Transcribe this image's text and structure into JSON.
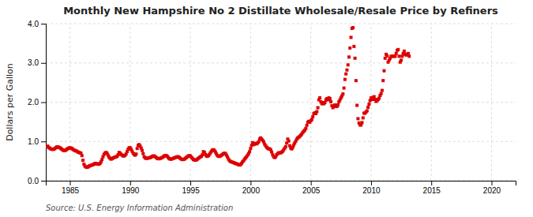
{
  "chart_data": {
    "type": "scatter",
    "title": "Monthly New Hampshire No 2 Distillate Wholesale/Resale Price by Refiners",
    "y_label": "Dollars per Gallon",
    "annotations": [
      "Source: U.S. Energy Information Administration"
    ],
    "color": "#dd0000",
    "marker": "square",
    "grid": true,
    "xlim": [
      1983,
      2022
    ],
    "ylim": [
      0.0,
      4.0
    ],
    "xticks": [
      1985,
      1990,
      1995,
      2000,
      2005,
      2010,
      2015,
      2020
    ],
    "yticks": [
      {
        "value": 0.0,
        "label": "0.0"
      },
      {
        "value": 1.0,
        "label": "1.0"
      },
      {
        "value": 2.0,
        "label": "2.0"
      },
      {
        "value": 3.0,
        "label": "3.0"
      },
      {
        "value": 4.0,
        "label": "4.0"
      }
    ],
    "x": [
      1983.0833333333,
      1983.1666666667,
      1983.25,
      1983.3333333333,
      1983.4166666667,
      1983.5,
      1983.5833333333,
      1983.6666666667,
      1983.75,
      1983.8333333333,
      1983.9166666667,
      1984,
      1984.0833333333,
      1984.1666666667,
      1984.25,
      1984.3333333333,
      1984.4166666667,
      1984.5,
      1984.5833333333,
      1984.6666666667,
      1984.75,
      1984.8333333333,
      1984.9166666667,
      1985,
      1985.0833333333,
      1985.1666666667,
      1985.25,
      1985.3333333333,
      1985.4166666667,
      1985.5,
      1985.5833333333,
      1985.6666666667,
      1985.75,
      1985.8333333333,
      1985.9166666667,
      1986,
      1986.0833333333,
      1986.1666666667,
      1986.25,
      1986.3333333333,
      1986.4166666667,
      1986.5,
      1986.5833333333,
      1986.6666666667,
      1986.75,
      1986.8333333333,
      1986.9166666667,
      1987,
      1987.0833333333,
      1987.1666666667,
      1987.25,
      1987.3333333333,
      1987.4166666667,
      1987.5,
      1987.5833333333,
      1987.6666666667,
      1987.75,
      1987.8333333333,
      1987.9166666667,
      1988,
      1988.0833333333,
      1988.1666666667,
      1988.25,
      1988.3333333333,
      1988.4166666667,
      1988.5,
      1988.5833333333,
      1988.6666666667,
      1988.75,
      1988.8333333333,
      1988.9166666667,
      1989,
      1989.0833333333,
      1989.1666666667,
      1989.25,
      1989.3333333333,
      1989.4166666667,
      1989.5,
      1989.5833333333,
      1989.6666666667,
      1989.75,
      1989.8333333333,
      1989.9166666667,
      1990,
      1990.0833333333,
      1990.1666666667,
      1990.25,
      1990.3333333333,
      1990.4166666667,
      1990.5,
      1990.5833333333,
      1990.6666666667,
      1990.75,
      1990.8333333333,
      1990.9166666667,
      1991,
      1991.0833333333,
      1991.1666666667,
      1991.25,
      1991.3333333333,
      1991.4166666667,
      1991.5,
      1991.5833333333,
      1991.6666666667,
      1991.75,
      1991.8333333333,
      1991.9166666667,
      1992,
      1992.0833333333,
      1992.1666666667,
      1992.25,
      1992.3333333333,
      1992.4166666667,
      1992.5,
      1992.5833333333,
      1992.6666666667,
      1992.75,
      1992.8333333333,
      1992.9166666667,
      1993,
      1993.0833333333,
      1993.1666666667,
      1993.25,
      1993.3333333333,
      1993.4166666667,
      1993.5,
      1993.5833333333,
      1993.6666666667,
      1993.75,
      1993.8333333333,
      1993.9166666667,
      1994,
      1994.0833333333,
      1994.1666666667,
      1994.25,
      1994.3333333333,
      1994.4166666667,
      1994.5,
      1994.5833333333,
      1994.6666666667,
      1994.75,
      1994.8333333333,
      1994.9166666667,
      1995,
      1995.0833333333,
      1995.1666666667,
      1995.25,
      1995.3333333333,
      1995.4166666667,
      1995.5,
      1995.5833333333,
      1995.6666666667,
      1995.75,
      1995.8333333333,
      1995.9166666667,
      1996,
      1996.0833333333,
      1996.1666666667,
      1996.25,
      1996.3333333333,
      1996.4166666667,
      1996.5,
      1996.5833333333,
      1996.6666666667,
      1996.75,
      1996.8333333333,
      1996.9166666667,
      1997,
      1997.0833333333,
      1997.1666666667,
      1997.25,
      1997.3333333333,
      1997.4166666667,
      1997.5,
      1997.5833333333,
      1997.6666666667,
      1997.75,
      1997.8333333333,
      1997.9166666667,
      1998,
      1998.0833333333,
      1998.1666666667,
      1998.25,
      1998.3333333333,
      1998.4166666667,
      1998.5,
      1998.5833333333,
      1998.6666666667,
      1998.75,
      1998.8333333333,
      1998.9166666667,
      1999,
      1999.0833333333,
      1999.1666666667,
      1999.25,
      1999.3333333333,
      1999.4166666667,
      1999.5,
      1999.5833333333,
      1999.6666666667,
      1999.75,
      1999.8333333333,
      1999.9166666667,
      2000,
      2000.0833333333,
      2000.1666666667,
      2000.25,
      2000.3333333333,
      2000.4166666667,
      2000.5,
      2000.5833333333,
      2000.6666666667,
      2000.75,
      2000.8333333333,
      2000.9166666667,
      2001,
      2001.0833333333,
      2001.1666666667,
      2001.25,
      2001.3333333333,
      2001.4166666667,
      2001.5,
      2001.5833333333,
      2001.6666666667,
      2001.75,
      2001.8333333333,
      2001.9166666667,
      2002,
      2002.0833333333,
      2002.1666666667,
      2002.25,
      2002.3333333333,
      2002.4166666667,
      2002.5,
      2002.5833333333,
      2002.6666666667,
      2002.75,
      2002.8333333333,
      2002.9166666667,
      2003,
      2003.0833333333,
      2003.1666666667,
      2003.25,
      2003.3333333333,
      2003.4166666667,
      2003.5,
      2003.5833333333,
      2003.6666666667,
      2003.75,
      2003.8333333333,
      2003.9166666667,
      2004,
      2004.0833333333,
      2004.1666666667,
      2004.25,
      2004.3333333333,
      2004.4166666667,
      2004.5,
      2004.5833333333,
      2004.6666666667,
      2004.75,
      2004.8333333333,
      2004.9166666667,
      2005,
      2005.0833333333,
      2005.1666666667,
      2005.25,
      2005.3333333333,
      2005.4166666667,
      2005.5,
      2005.5833333333,
      2005.6666666667,
      2005.75,
      2005.8333333333,
      2005.9166666667,
      2006,
      2006.0833333333,
      2006.1666666667,
      2006.25,
      2006.3333333333,
      2006.4166666667,
      2006.5,
      2006.5833333333,
      2006.6666666667,
      2006.75,
      2006.8333333333,
      2006.9166666667,
      2007,
      2007.0833333333,
      2007.1666666667,
      2007.25,
      2007.3333333333,
      2007.4166666667,
      2007.5,
      2007.5833333333,
      2007.6666666667,
      2007.75,
      2007.8333333333,
      2007.9166666667,
      2008,
      2008.0833333333,
      2008.1666666667,
      2008.25,
      2008.3333333333,
      2008.4166666667,
      2008.5,
      2008.5833333333,
      2008.6666666667,
      2008.75,
      2008.8333333333,
      2008.9166666667,
      2009,
      2009.0833333333,
      2009.1666666667,
      2009.25,
      2009.3333333333,
      2009.4166666667,
      2009.5,
      2009.5833333333,
      2009.6666666667,
      2009.75,
      2009.8333333333,
      2009.9166666667,
      2010,
      2010.0833333333,
      2010.1666666667,
      2010.25,
      2010.3333333333,
      2010.4166666667,
      2010.5,
      2010.5833333333,
      2010.6666666667,
      2010.75,
      2010.8333333333,
      2010.9166666667,
      2011,
      2011.0833333333,
      2011.1666666667,
      2011.25,
      2011.3333333333,
      2011.4166666667,
      2011.5,
      2011.5833333333,
      2011.6666666667,
      2011.75,
      2011.8333333333,
      2011.9166666667,
      2012,
      2012.0833333333,
      2012.1666666667,
      2012.25,
      2012.3333333333,
      2012.4166666667,
      2012.5,
      2012.5833333333,
      2012.6666666667,
      2012.75,
      2012.8333333333,
      2012.9166666667,
      2013,
      2013.0833333333,
      2013.1666666667
    ],
    "values": [
      0.87,
      0.88,
      0.84,
      0.83,
      0.81,
      0.8,
      0.8,
      0.8,
      0.82,
      0.84,
      0.86,
      0.86,
      0.85,
      0.84,
      0.82,
      0.8,
      0.78,
      0.77,
      0.77,
      0.78,
      0.8,
      0.82,
      0.83,
      0.84,
      0.83,
      0.82,
      0.8,
      0.78,
      0.77,
      0.76,
      0.75,
      0.73,
      0.72,
      0.71,
      0.7,
      0.64,
      0.52,
      0.42,
      0.37,
      0.35,
      0.34,
      0.35,
      0.37,
      0.38,
      0.39,
      0.4,
      0.41,
      0.42,
      0.44,
      0.44,
      0.43,
      0.42,
      0.42,
      0.44,
      0.48,
      0.54,
      0.61,
      0.67,
      0.7,
      0.72,
      0.7,
      0.65,
      0.6,
      0.57,
      0.55,
      0.56,
      0.58,
      0.59,
      0.6,
      0.61,
      0.62,
      0.66,
      0.72,
      0.7,
      0.67,
      0.65,
      0.63,
      0.63,
      0.65,
      0.68,
      0.74,
      0.8,
      0.84,
      0.84,
      0.8,
      0.75,
      0.7,
      0.67,
      0.65,
      0.68,
      0.82,
      0.9,
      0.92,
      0.88,
      0.83,
      0.77,
      0.69,
      0.61,
      0.58,
      0.57,
      0.57,
      0.58,
      0.58,
      0.59,
      0.6,
      0.62,
      0.63,
      0.63,
      0.61,
      0.59,
      0.57,
      0.56,
      0.56,
      0.57,
      0.58,
      0.59,
      0.61,
      0.63,
      0.64,
      0.64,
      0.62,
      0.59,
      0.56,
      0.55,
      0.55,
      0.56,
      0.57,
      0.58,
      0.59,
      0.6,
      0.61,
      0.61,
      0.59,
      0.57,
      0.55,
      0.54,
      0.54,
      0.55,
      0.57,
      0.59,
      0.61,
      0.63,
      0.64,
      0.63,
      0.6,
      0.57,
      0.54,
      0.53,
      0.52,
      0.53,
      0.55,
      0.57,
      0.59,
      0.61,
      0.62,
      0.66,
      0.74,
      0.72,
      0.67,
      0.63,
      0.62,
      0.64,
      0.67,
      0.71,
      0.75,
      0.78,
      0.79,
      0.77,
      0.73,
      0.68,
      0.64,
      0.62,
      0.62,
      0.63,
      0.65,
      0.67,
      0.69,
      0.7,
      0.69,
      0.65,
      0.6,
      0.55,
      0.51,
      0.49,
      0.48,
      0.47,
      0.46,
      0.45,
      0.44,
      0.43,
      0.42,
      0.41,
      0.4,
      0.41,
      0.44,
      0.48,
      0.51,
      0.55,
      0.58,
      0.61,
      0.65,
      0.69,
      0.74,
      0.82,
      0.9,
      0.97,
      0.92,
      0.93,
      0.95,
      0.94,
      0.96,
      0.99,
      1.06,
      1.09,
      1.06,
      1.03,
      0.99,
      0.93,
      0.89,
      0.85,
      0.83,
      0.81,
      0.81,
      0.79,
      0.73,
      0.66,
      0.61,
      0.59,
      0.61,
      0.66,
      0.69,
      0.71,
      0.71,
      0.71,
      0.73,
      0.75,
      0.79,
      0.83,
      0.87,
      0.96,
      1.06,
      1.01,
      0.89,
      0.83,
      0.81,
      0.85,
      0.91,
      0.96,
      1.01,
      1.06,
      1.09,
      1.11,
      1.13,
      1.16,
      1.19,
      1.23,
      1.26,
      1.29,
      1.33,
      1.41,
      1.49,
      1.51,
      1.49,
      1.53,
      1.56,
      1.63,
      1.71,
      1.73,
      1.71,
      1.76,
      1.86,
      2.06,
      2.11,
      2.01,
      1.96,
      1.99,
      1.96,
      1.99,
      2.06,
      2.09,
      2.06,
      2.11,
      2.09,
      2.01,
      1.91,
      1.86,
      1.89,
      1.93,
      1.91,
      1.89,
      1.93,
      2.01,
      2.06,
      2.11,
      2.16,
      2.21,
      2.36,
      2.58,
      2.72,
      2.82,
      2.95,
      3.15,
      3.38,
      3.65,
      3.88,
      3.9,
      3.42,
      3.12,
      2.55,
      1.92,
      1.58,
      1.47,
      1.42,
      1.42,
      1.48,
      1.6,
      1.72,
      1.72,
      1.75,
      1.78,
      1.87,
      1.95,
      2.04,
      2.11,
      2.07,
      2.12,
      2.14,
      2.07,
      2.02,
      2.04,
      2.07,
      2.1,
      2.17,
      2.22,
      2.3,
      2.55,
      2.8,
      3.12,
      3.22,
      3.18,
      3.02,
      3.07,
      3.12,
      3.17,
      3.17,
      3.17,
      3.17,
      3.17,
      3.24,
      3.32,
      3.34,
      3.17,
      3.02,
      3.07,
      3.17,
      3.24,
      3.3,
      3.22,
      3.2,
      3.22,
      3.24,
      3.17
    ]
  }
}
